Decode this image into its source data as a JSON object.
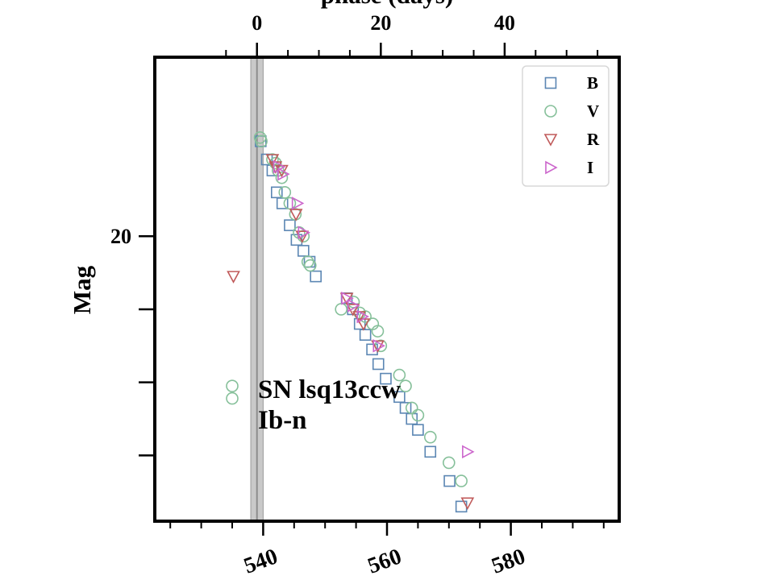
{
  "chart_data": {
    "type": "scatter",
    "title": "",
    "xlabel": "",
    "ylabel": "Mag",
    "top_xlabel": "phase (days)",
    "xlim": [
      522.5,
      597.5
    ],
    "ylim": [
      23.9,
      17.55
    ],
    "x_ticks": [
      540,
      560,
      580
    ],
    "y_ticks": [
      20
    ],
    "top_phase_ticks": [
      0,
      20,
      40
    ],
    "phase_zero_x": 539,
    "peak_band": [
      538,
      540
    ],
    "grid": false,
    "legend_position": "top-right",
    "annotation": [
      "SN lsq13ccw",
      "Ib-n"
    ],
    "series": [
      {
        "name": "B",
        "marker": "square",
        "color": "#5b86b3",
        "points": [
          [
            539.6,
            18.7
          ],
          [
            540.6,
            18.95
          ],
          [
            541.5,
            19.1
          ],
          [
            542.2,
            19.4
          ],
          [
            543.1,
            19.55
          ],
          [
            544.3,
            19.85
          ],
          [
            545.4,
            20.05
          ],
          [
            546.5,
            20.2
          ],
          [
            547.5,
            20.35
          ],
          [
            548.5,
            20.55
          ],
          [
            553.5,
            20.85
          ],
          [
            554.5,
            21.0
          ],
          [
            555.6,
            21.2
          ],
          [
            556.5,
            21.35
          ],
          [
            557.6,
            21.55
          ],
          [
            558.6,
            21.75
          ],
          [
            559.8,
            21.95
          ],
          [
            562.0,
            22.2
          ],
          [
            563.0,
            22.35
          ],
          [
            564.0,
            22.5
          ],
          [
            565.0,
            22.65
          ],
          [
            567.0,
            22.95
          ],
          [
            570.1,
            23.35
          ],
          [
            572.0,
            23.7
          ]
        ]
      },
      {
        "name": "V",
        "marker": "circle",
        "color": "#86c09a",
        "points": [
          [
            535.0,
            22.05
          ],
          [
            535.0,
            22.22
          ],
          [
            539.5,
            18.65
          ],
          [
            539.7,
            18.7
          ],
          [
            541.5,
            18.95
          ],
          [
            542.0,
            19.0
          ],
          [
            542.4,
            19.1
          ],
          [
            543.0,
            19.2
          ],
          [
            543.5,
            19.4
          ],
          [
            544.3,
            19.55
          ],
          [
            545.2,
            19.7
          ],
          [
            545.8,
            19.95
          ],
          [
            546.5,
            20.0
          ],
          [
            547.2,
            20.35
          ],
          [
            547.6,
            20.4
          ],
          [
            552.6,
            21.0
          ],
          [
            554.6,
            20.9
          ],
          [
            555.6,
            21.05
          ],
          [
            556.5,
            21.1
          ],
          [
            557.7,
            21.2
          ],
          [
            558.5,
            21.3
          ],
          [
            559.0,
            21.5
          ],
          [
            562.0,
            21.9
          ],
          [
            563.0,
            22.05
          ],
          [
            564.0,
            22.35
          ],
          [
            565.0,
            22.45
          ],
          [
            567.0,
            22.75
          ],
          [
            570.0,
            23.1
          ],
          [
            572.0,
            23.35
          ]
        ]
      },
      {
        "name": "R",
        "marker": "triangle-down",
        "color": "#c05a5a",
        "points": [
          [
            535.2,
            20.55
          ],
          [
            541.5,
            18.95
          ],
          [
            542.0,
            19.05
          ],
          [
            543.0,
            19.1
          ],
          [
            545.3,
            19.7
          ],
          [
            546.3,
            20.0
          ],
          [
            553.5,
            20.85
          ],
          [
            554.5,
            21.0
          ],
          [
            555.5,
            21.1
          ],
          [
            556.2,
            21.2
          ],
          [
            558.5,
            21.5
          ],
          [
            573.0,
            23.65
          ]
        ]
      },
      {
        "name": "I",
        "marker": "triangle-right",
        "color": "#cc66cc",
        "points": [
          [
            542.5,
            19.05
          ],
          [
            543.2,
            19.15
          ],
          [
            545.5,
            19.55
          ],
          [
            546.5,
            19.95
          ],
          [
            553.5,
            20.85
          ],
          [
            554.5,
            20.95
          ],
          [
            556.0,
            21.1
          ],
          [
            558.6,
            21.5
          ],
          [
            573.0,
            22.95
          ]
        ]
      }
    ]
  }
}
